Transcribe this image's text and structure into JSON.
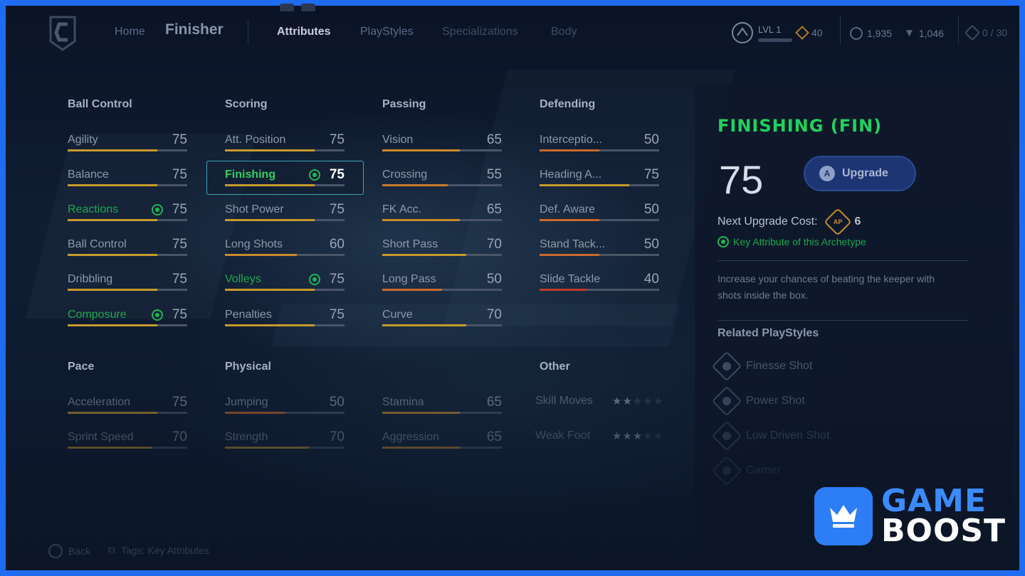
{
  "nav": {
    "home": "Home",
    "title": "Finisher",
    "tabs": [
      "Attributes",
      "PlayStyles",
      "Specializations",
      "Body"
    ]
  },
  "hud": {
    "level": "LVL 1",
    "ap": "40",
    "coins": "1,935",
    "gems": "1,046",
    "slots": "0 / 30"
  },
  "columns": [
    {
      "category": "Ball Control",
      "stats": [
        {
          "name": "Agility",
          "value": "75",
          "fill": 0.75,
          "color": "#c69a2b"
        },
        {
          "name": "Balance",
          "value": "75",
          "fill": 0.75,
          "color": "#c69a2b"
        },
        {
          "name": "Reactions",
          "value": "75",
          "fill": 0.75,
          "color": "#c69a2b",
          "key": true
        },
        {
          "name": "Ball Control",
          "value": "75",
          "fill": 0.75,
          "color": "#c69a2b"
        },
        {
          "name": "Dribbling",
          "value": "75",
          "fill": 0.75,
          "color": "#c69a2b"
        },
        {
          "name": "Composure",
          "value": "75",
          "fill": 0.75,
          "color": "#c69a2b",
          "key": true
        }
      ]
    },
    {
      "category": "Scoring",
      "stats": [
        {
          "name": "Att. Position",
          "value": "75",
          "fill": 0.75,
          "color": "#c69a2b"
        },
        {
          "name": "Finishing",
          "value": "75",
          "fill": 0.75,
          "color": "#c69a2b",
          "key": true,
          "selected": true
        },
        {
          "name": "Shot Power",
          "value": "75",
          "fill": 0.75,
          "color": "#c69a2b"
        },
        {
          "name": "Long Shots",
          "value": "60",
          "fill": 0.6,
          "color": "#c98a2a"
        },
        {
          "name": "Volleys",
          "value": "75",
          "fill": 0.75,
          "color": "#c69a2b",
          "key": true
        },
        {
          "name": "Penalties",
          "value": "75",
          "fill": 0.75,
          "color": "#c69a2b"
        }
      ]
    },
    {
      "category": "Passing",
      "stats": [
        {
          "name": "Vision",
          "value": "65",
          "fill": 0.65,
          "color": "#c98a2a"
        },
        {
          "name": "Crossing",
          "value": "55",
          "fill": 0.55,
          "color": "#c97a2a"
        },
        {
          "name": "FK Acc.",
          "value": "65",
          "fill": 0.65,
          "color": "#c98a2a"
        },
        {
          "name": "Short Pass",
          "value": "70",
          "fill": 0.7,
          "color": "#c69a2b"
        },
        {
          "name": "Long Pass",
          "value": "50",
          "fill": 0.5,
          "color": "#c96a2a"
        },
        {
          "name": "Curve",
          "value": "70",
          "fill": 0.7,
          "color": "#c69a2b"
        }
      ]
    },
    {
      "category": "Defending",
      "stats": [
        {
          "name": "Interceptio...",
          "value": "50",
          "fill": 0.5,
          "color": "#c96a2a"
        },
        {
          "name": "Heading A...",
          "value": "75",
          "fill": 0.75,
          "color": "#c69a2b"
        },
        {
          "name": "Def. Aware",
          "value": "50",
          "fill": 0.5,
          "color": "#c96a2a"
        },
        {
          "name": "Stand Tack...",
          "value": "50",
          "fill": 0.5,
          "color": "#c96a2a"
        },
        {
          "name": "Slide Tackle",
          "value": "40",
          "fill": 0.4,
          "color": "#c0392b"
        }
      ]
    }
  ],
  "lower": {
    "pace": {
      "category": "Pace",
      "stats": [
        {
          "name": "Acceleration",
          "value": "75",
          "fill": 0.75,
          "color": "#c69a2b"
        },
        {
          "name": "Sprint Speed",
          "value": "70",
          "fill": 0.7,
          "color": "#c69a2b"
        }
      ]
    },
    "physical": {
      "category": "Physical",
      "stats": [
        {
          "name": "Jumping",
          "value": "50",
          "fill": 0.5,
          "color": "#c96a2a"
        },
        {
          "name": "Strength",
          "value": "70",
          "fill": 0.7,
          "color": "#c69a2b"
        }
      ]
    },
    "physical2": {
      "stats": [
        {
          "name": "Stamina",
          "value": "65",
          "fill": 0.65,
          "color": "#c98a2a"
        },
        {
          "name": "Aggression",
          "value": "65",
          "fill": 0.65,
          "color": "#c98a2a"
        }
      ]
    },
    "other": {
      "category": "Other",
      "rows": [
        {
          "name": "Skill Moves",
          "stars": 2,
          "max": 5
        },
        {
          "name": "Weak Foot",
          "stars": 3,
          "max": 5
        }
      ]
    }
  },
  "panel": {
    "title": "FINISHING (FIN)",
    "value": "75",
    "upgrade_button": "A",
    "upgrade_label": "Upgrade",
    "cost_label": "Next Upgrade Cost:",
    "cost_badge": "AP",
    "cost_value": "6",
    "key_attr": "Key Attribute of this Archetype",
    "description": "Increase your chances of beating the keeper with shots inside the box.",
    "related_title": "Related PlayStyles",
    "playstyles": [
      "Finesse Shot",
      "Power Shot",
      "Low Driven Shot",
      "Gamer"
    ]
  },
  "footer": {
    "back": "Back",
    "tags": "Tags: Key Attributes"
  },
  "watermark": {
    "line1": "GAME",
    "line2": "BOOST"
  }
}
